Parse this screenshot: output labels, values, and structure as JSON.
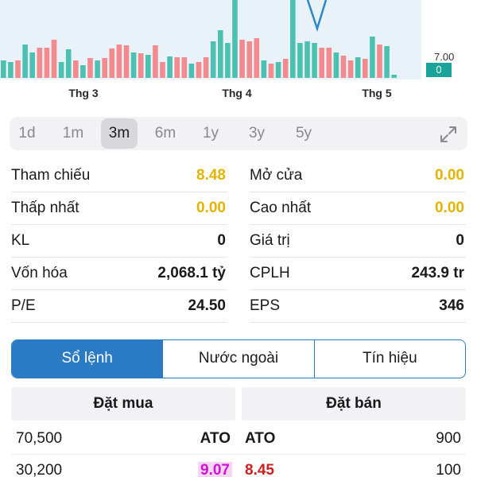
{
  "chart": {
    "x_labels": [
      "Thg 3",
      "Thg 4",
      "Thg 5"
    ],
    "price_tick": "7.00",
    "volume_badge": "0",
    "colors": {
      "up": "#4dc1b1",
      "down": "#f28a8e",
      "line": "#2a87c8",
      "bg": "#e9f2f9"
    },
    "volume_bars": [
      {
        "h": 22,
        "c": "up"
      },
      {
        "h": 20,
        "c": "up"
      },
      {
        "h": 22,
        "c": "down"
      },
      {
        "h": 42,
        "c": "up"
      },
      {
        "h": 32,
        "c": "up"
      },
      {
        "h": 38,
        "c": "down"
      },
      {
        "h": 38,
        "c": "down"
      },
      {
        "h": 48,
        "c": "down"
      },
      {
        "h": 20,
        "c": "up"
      },
      {
        "h": 36,
        "c": "up"
      },
      {
        "h": 22,
        "c": "down"
      },
      {
        "h": 16,
        "c": "up"
      },
      {
        "h": 25,
        "c": "down"
      },
      {
        "h": 22,
        "c": "up"
      },
      {
        "h": 25,
        "c": "down"
      },
      {
        "h": 37,
        "c": "down"
      },
      {
        "h": 42,
        "c": "down"
      },
      {
        "h": 41,
        "c": "down"
      },
      {
        "h": 32,
        "c": "up"
      },
      {
        "h": 31,
        "c": "down"
      },
      {
        "h": 29,
        "c": "up"
      },
      {
        "h": 41,
        "c": "down"
      },
      {
        "h": 20,
        "c": "down"
      },
      {
        "h": 27,
        "c": "up"
      },
      {
        "h": 26,
        "c": "down"
      },
      {
        "h": 26,
        "c": "down"
      },
      {
        "h": 18,
        "c": "up"
      },
      {
        "h": 20,
        "c": "down"
      },
      {
        "h": 26,
        "c": "down"
      },
      {
        "h": 46,
        "c": "up"
      },
      {
        "h": 60,
        "c": "up"
      },
      {
        "h": 44,
        "c": "up"
      },
      {
        "h": 98,
        "c": "up"
      },
      {
        "h": 48,
        "c": "down"
      },
      {
        "h": 46,
        "c": "down"
      },
      {
        "h": 50,
        "c": "down"
      },
      {
        "h": 22,
        "c": "up"
      },
      {
        "h": 18,
        "c": "down"
      },
      {
        "h": 20,
        "c": "up"
      },
      {
        "h": 24,
        "c": "down"
      },
      {
        "h": 98,
        "c": "up"
      },
      {
        "h": 44,
        "c": "up"
      },
      {
        "h": 46,
        "c": "up"
      },
      {
        "h": 44,
        "c": "up"
      },
      {
        "h": 38,
        "c": "down"
      },
      {
        "h": 38,
        "c": "down"
      },
      {
        "h": 32,
        "c": "up"
      },
      {
        "h": 28,
        "c": "down"
      },
      {
        "h": 22,
        "c": "down"
      },
      {
        "h": 26,
        "c": "up"
      },
      {
        "h": 24,
        "c": "down"
      },
      {
        "h": 52,
        "c": "up"
      },
      {
        "h": 42,
        "c": "down"
      },
      {
        "h": 40,
        "c": "up"
      },
      {
        "h": 4,
        "c": "up"
      }
    ]
  },
  "periods": [
    "1d",
    "1m",
    "3m",
    "6m",
    "1y",
    "3y",
    "5y"
  ],
  "active_period": "3m",
  "stats": {
    "left": [
      {
        "label": "Tham chiếu",
        "value": "8.48",
        "color": "yellow"
      },
      {
        "label": "Thấp nhất",
        "value": "0.00",
        "color": "yellow"
      },
      {
        "label": "KL",
        "value": "0",
        "color": "normal"
      },
      {
        "label": "Vốn hóa",
        "value": "2,068.1 tỷ",
        "color": "normal"
      },
      {
        "label": "P/E",
        "value": "24.50",
        "color": "normal"
      }
    ],
    "right": [
      {
        "label": "Mở cửa",
        "value": "0.00",
        "color": "yellow"
      },
      {
        "label": "Cao nhất",
        "value": "0.00",
        "color": "yellow"
      },
      {
        "label": "Giá trị",
        "value": "0",
        "color": "normal"
      },
      {
        "label": "CPLH",
        "value": "243.9 tr",
        "color": "normal"
      },
      {
        "label": "EPS",
        "value": "346",
        "color": "normal"
      }
    ]
  },
  "tabs": [
    {
      "label": "Sổ lệnh",
      "active": true
    },
    {
      "label": "Nước ngoài",
      "active": false
    },
    {
      "label": "Tín hiệu",
      "active": false
    }
  ],
  "order_book": {
    "buy_header": "Đặt mua",
    "sell_header": "Đặt bán",
    "rows": [
      {
        "buy_vol": "70,500",
        "buy_price": "ATO",
        "sell_price": "ATO",
        "sell_vol": "900",
        "buy_style": "bold",
        "sell_style": "bold"
      },
      {
        "buy_vol": "30,200",
        "buy_price": "9.07",
        "sell_price": "8.45",
        "sell_vol": "100",
        "buy_style": "magenta",
        "sell_style": "red"
      }
    ]
  }
}
